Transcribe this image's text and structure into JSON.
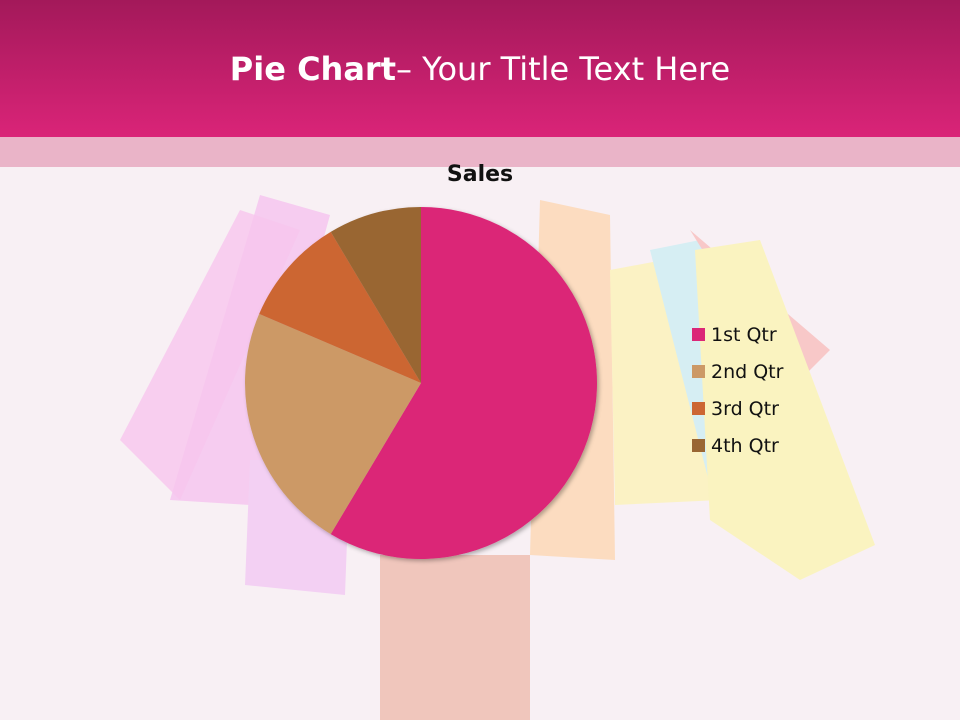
{
  "slide": {
    "title_bold": "Pie Chart",
    "title_rest": "– Your Title Text Here"
  },
  "chart_data": {
    "type": "pie",
    "title": "Sales",
    "categories": [
      "1st Qtr",
      "2nd Qtr",
      "3rd Qtr",
      "4th Qtr"
    ],
    "values": [
      8.2,
      3.2,
      1.4,
      1.2
    ],
    "colors": [
      "#db2777",
      "#cc9966",
      "#cc6633",
      "#996633"
    ],
    "legend": "right"
  }
}
